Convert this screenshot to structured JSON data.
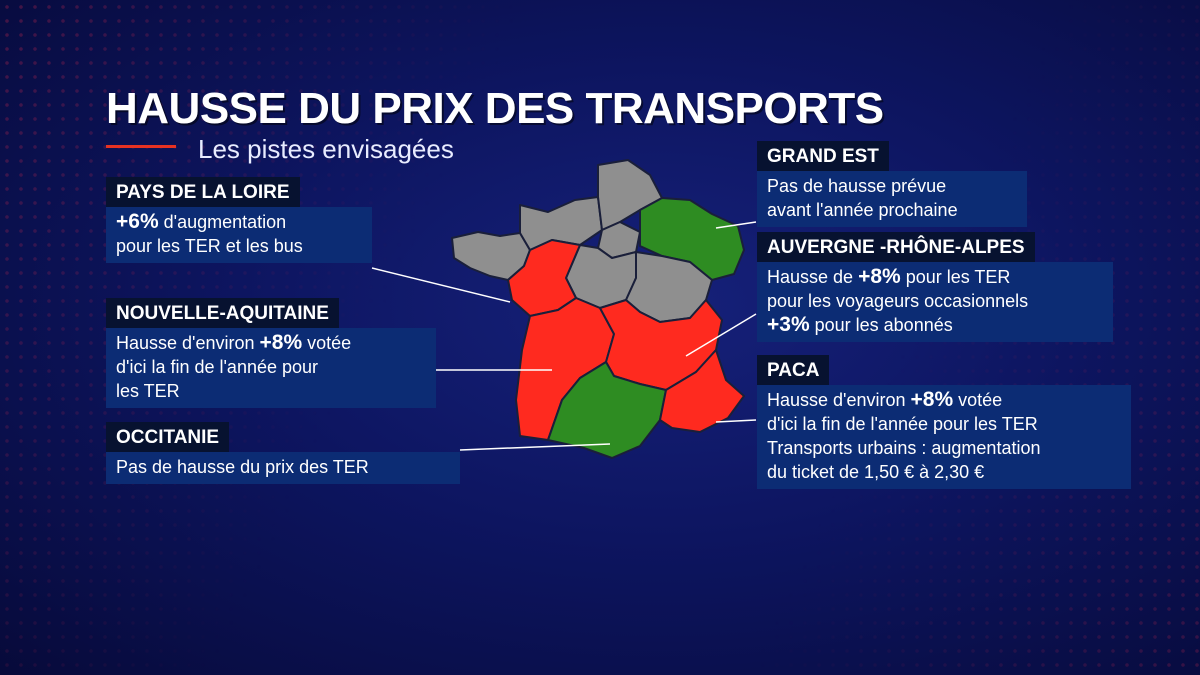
{
  "title": "HAUSSE DU PRIX DES TRANSPORTS",
  "subtitle": "Les pistes envisagées",
  "colors": {
    "raise": "#ff2a1f",
    "no_raise": "#2e8c22",
    "no_info": "#8f8f8f",
    "box_head": "#071230",
    "box_body": "#0c2c74",
    "accent": "#e63222"
  },
  "regions": {
    "pays_de_la_loire": {
      "name": "PAYS DE LA LOIRE",
      "big": "+6%",
      "line1_rest": " d'augmentation",
      "line2": "pour les TER et les bus"
    },
    "nouvelle_aquitaine": {
      "name": "NOUVELLE-AQUITAINE",
      "line1_pre": "Hausse d'environ ",
      "big": "+8%",
      "line1_post": " votée",
      "line2": "d'ici la fin de l'année pour",
      "line3": "les TER"
    },
    "occitanie": {
      "name": "OCCITANIE",
      "line1": "Pas de hausse du prix des TER"
    },
    "grand_est": {
      "name": "GRAND EST",
      "line1": "Pas de hausse prévue",
      "line2": "avant l'année prochaine"
    },
    "auvergne_rhone_alpes": {
      "name": "AUVERGNE -RHÔNE-ALPES",
      "line1_pre": "Hausse de ",
      "big": "+8%",
      "line1_post": " pour les TER",
      "line2": "pour les voyageurs occasionnels",
      "big2": "+3%",
      "line3_post": " pour les abonnés"
    },
    "paca": {
      "name": "PACA",
      "line1_pre": "Hausse d'environ ",
      "big": "+8%",
      "line1_post": " votée",
      "line2": "d'ici la fin de l'année pour les TER",
      "line3": "Transports urbains : augmentation",
      "line4": "du ticket de 1,50 € à 2,30 €"
    }
  }
}
